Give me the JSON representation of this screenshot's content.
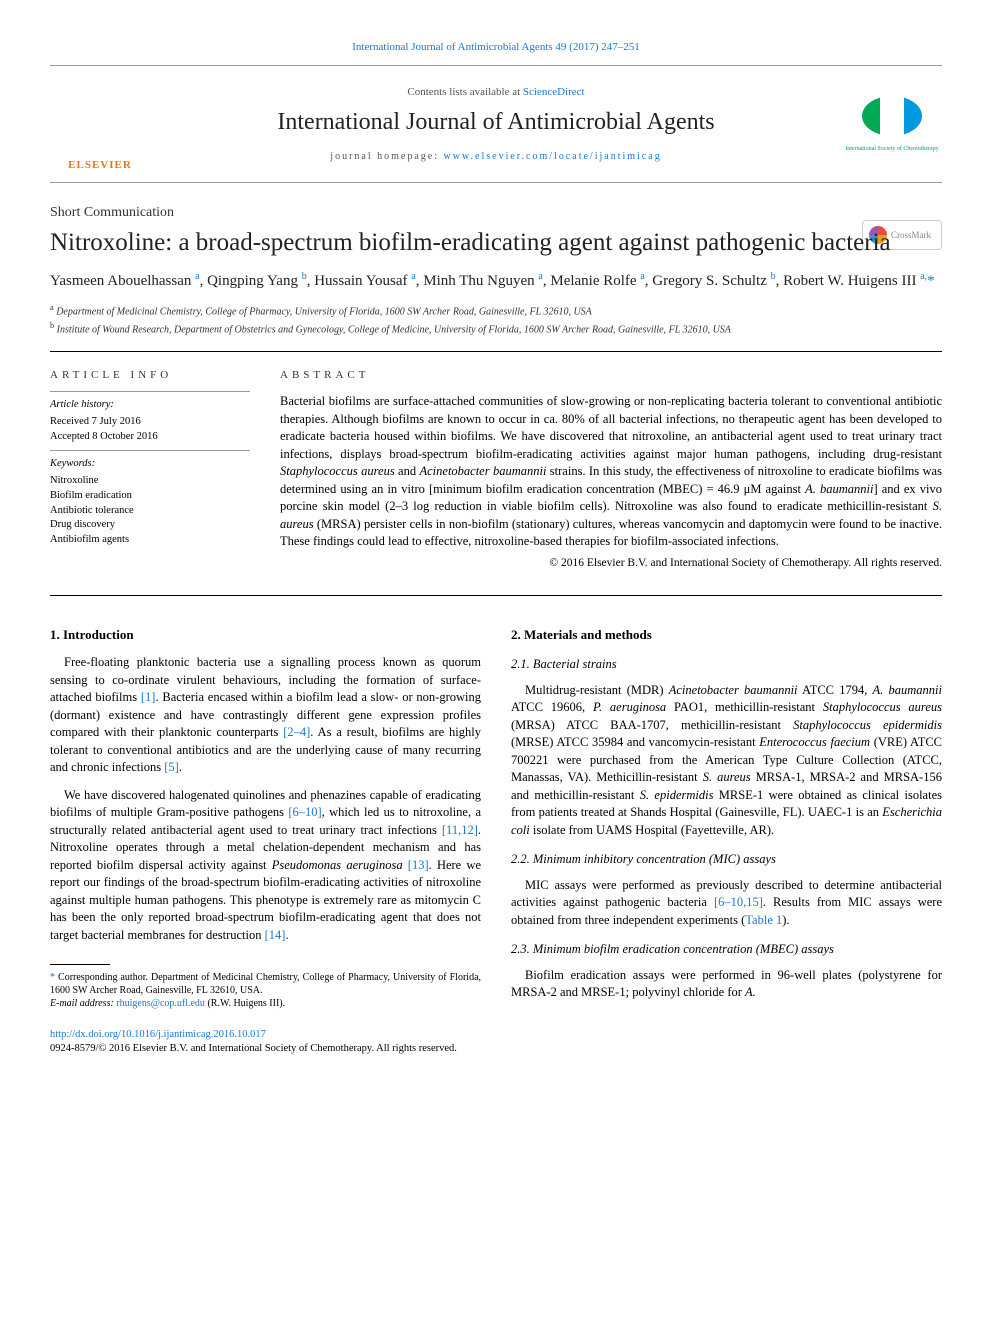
{
  "top_citation": "International Journal of Antimicrobial Agents 49 (2017) 247–251",
  "masthead": {
    "contents_prefix": "Contents lists available at ",
    "contents_link": "ScienceDirect",
    "journal_name": "International Journal of Antimicrobial Agents",
    "homepage_prefix": "journal homepage: ",
    "homepage_link": "www.elsevier.com/locate/ijantimicag",
    "publisher_label": "ELSEVIER",
    "society_label": "International Society of Chemotherapy"
  },
  "article_type": "Short Communication",
  "title": "Nitroxoline: a broad-spectrum biofilm-eradicating agent against pathogenic bacteria",
  "crossmark_label": "CrossMark",
  "authors_html": "Yasmeen Abouelhassan <sup>a</sup>, Qingping Yang <sup>b</sup>, Hussain Yousaf <sup>a</sup>, Minh Thu Nguyen <sup>a</sup>, Melanie Rolfe <sup>a</sup>, Gregory S. Schultz <sup>b</sup>, Robert W. Huigens III <sup>a,</sup><span class=\"asterisk\">*</span>",
  "affiliations": {
    "a": "Department of Medicinal Chemistry, College of Pharmacy, University of Florida, 1600 SW Archer Road, Gainesville, FL 32610, USA",
    "b": "Institute of Wound Research, Department of Obstetrics and Gynecology, College of Medicine, University of Florida, 1600 SW Archer Road, Gainesville, FL 32610, USA"
  },
  "article_info": {
    "header": "ARTICLE INFO",
    "history_label": "Article history:",
    "received": "Received 7 July 2016",
    "accepted": "Accepted 8 October 2016",
    "keywords_label": "Keywords:",
    "keywords": [
      "Nitroxoline",
      "Biofilm eradication",
      "Antibiotic tolerance",
      "Drug discovery",
      "Antibiofilm agents"
    ]
  },
  "abstract": {
    "header": "ABSTRACT",
    "text_html": "Bacterial biofilms are surface-attached communities of slow-growing or non-replicating bacteria tolerant to conventional antibiotic therapies. Although biofilms are known to occur in ca. 80% of all bacterial infections, no therapeutic agent has been developed to eradicate bacteria housed within biofilms. We have discovered that nitroxoline, an antibacterial agent used to treat urinary tract infections, displays broad-spectrum biofilm-eradicating activities against major human pathogens, including drug-resistant <span class=\"ital\">Staphylococcus aureus</span> and <span class=\"ital\">Acinetobacter baumannii</span> strains. In this study, the effectiveness of nitroxoline to eradicate biofilms was determined using an in vitro [minimum biofilm eradication concentration (MBEC) = 46.9 μM against <span class=\"ital\">A. baumannii</span>] and ex vivo porcine skin model (2–3 log reduction in viable biofilm cells). Nitroxoline was also found to eradicate methicillin-resistant <span class=\"ital\">S. aureus</span> (MRSA) persister cells in non-biofilm (stationary) cultures, whereas vancomycin and daptomycin were found to be inactive. These findings could lead to effective, nitroxoline-based therapies for biofilm-associated infections.",
    "copyright": "© 2016 Elsevier B.V. and International Society of Chemotherapy. All rights reserved."
  },
  "body": {
    "left": {
      "heading1": "1. Introduction",
      "p1_html": "Free-floating planktonic bacteria use a signalling process known as quorum sensing to co-ordinate virulent behaviours, including the formation of surface-attached biofilms <span class=\"ref-link\">[1]</span>. Bacteria encased within a biofilm lead a slow- or non-growing (dormant) existence and have contrastingly different gene expression profiles compared with their planktonic counterparts <span class=\"ref-link\">[2–4]</span>. As a result, biofilms are highly tolerant to conventional antibiotics and are the underlying cause of many recurring and chronic infections <span class=\"ref-link\">[5]</span>.",
      "p2_html": "We have discovered halogenated quinolines and phenazines capable of eradicating biofilms of multiple Gram-positive pathogens <span class=\"ref-link\">[6–10]</span>, which led us to nitroxoline, a structurally related antibacterial agent used to treat urinary tract infections <span class=\"ref-link\">[11,12]</span>. Nitroxoline operates through a metal chelation-dependent mechanism and has reported biofilm dispersal activity against <span class=\"ital\">Pseudomonas aeruginosa</span> <span class=\"ref-link\">[13]</span>. Here we report our findings of the broad-spectrum biofilm-eradicating activities of nitroxoline against multiple human pathogens. This phenotype is extremely rare as mitomycin C has been the only reported broad-spectrum biofilm-eradicating agent that does not target bacterial membranes for destruction <span class=\"ref-link\">[14]</span>."
    },
    "right": {
      "heading2": "2. Materials and methods",
      "sub21": "2.1. Bacterial strains",
      "p21_html": "Multidrug-resistant (MDR) <span class=\"ital\">Acinetobacter baumannii</span> ATCC 1794, <span class=\"ital\">A. baumannii</span> ATCC 19606, <span class=\"ital\">P. aeruginosa</span> PAO1, methicillin-resistant <span class=\"ital\">Staphylococcus aureus</span> (MRSA) ATCC BAA-1707, methicillin-resistant <span class=\"ital\">Staphylococcus epidermidis</span> (MRSE) ATCC 35984 and vancomycin-resistant <span class=\"ital\">Enterococcus faecium</span> (VRE) ATCC 700221 were purchased from the American Type Culture Collection (ATCC, Manassas, VA). Methicillin-resistant <span class=\"ital\">S. aureus</span> MRSA-1, MRSA-2 and MRSA-156 and methicillin-resistant <span class=\"ital\">S. epidermidis</span> MRSE-1 were obtained as clinical isolates from patients treated at Shands Hospital (Gainesville, FL). UAEC-1 is an <span class=\"ital\">Escherichia coli</span> isolate from UAMS Hospital (Fayetteville, AR).",
      "sub22": "2.2. Minimum inhibitory concentration (MIC) assays",
      "p22_html": "MIC assays were performed as previously described to determine antibacterial activities against pathogenic bacteria <span class=\"ref-link\">[6–10,15]</span>. Results from MIC assays were obtained from three independent experiments (<span class=\"ref-link\">Table 1</span>).",
      "sub23": "2.3. Minimum biofilm eradication concentration (MBEC) assays",
      "p23_html": "Biofilm eradication assays were performed in 96-well plates (polystyrene for MRSA-2 and MRSE-1; polyvinyl chloride for <span class=\"ital\">A.</span>"
    }
  },
  "footnotes": {
    "corr": "Corresponding author. Department of Medicinal Chemistry, College of Pharmacy, University of Florida, 1600 SW Archer Road, Gainesville, FL 32610, USA.",
    "email_label": "E-mail address:",
    "email": "rhuigens@cop.ufl.edu",
    "email_name": "(R.W. Huigens III)."
  },
  "bottom": {
    "doi": "http://dx.doi.org/10.1016/j.ijantimicag.2016.10.017",
    "issn_line": "0924-8579/© 2016 Elsevier B.V. and International Society of Chemotherapy. All rights reserved."
  },
  "colors": {
    "link": "#1976d2",
    "elsevier_orange": "#e67817",
    "text": "#000000",
    "rule": "#000000"
  }
}
